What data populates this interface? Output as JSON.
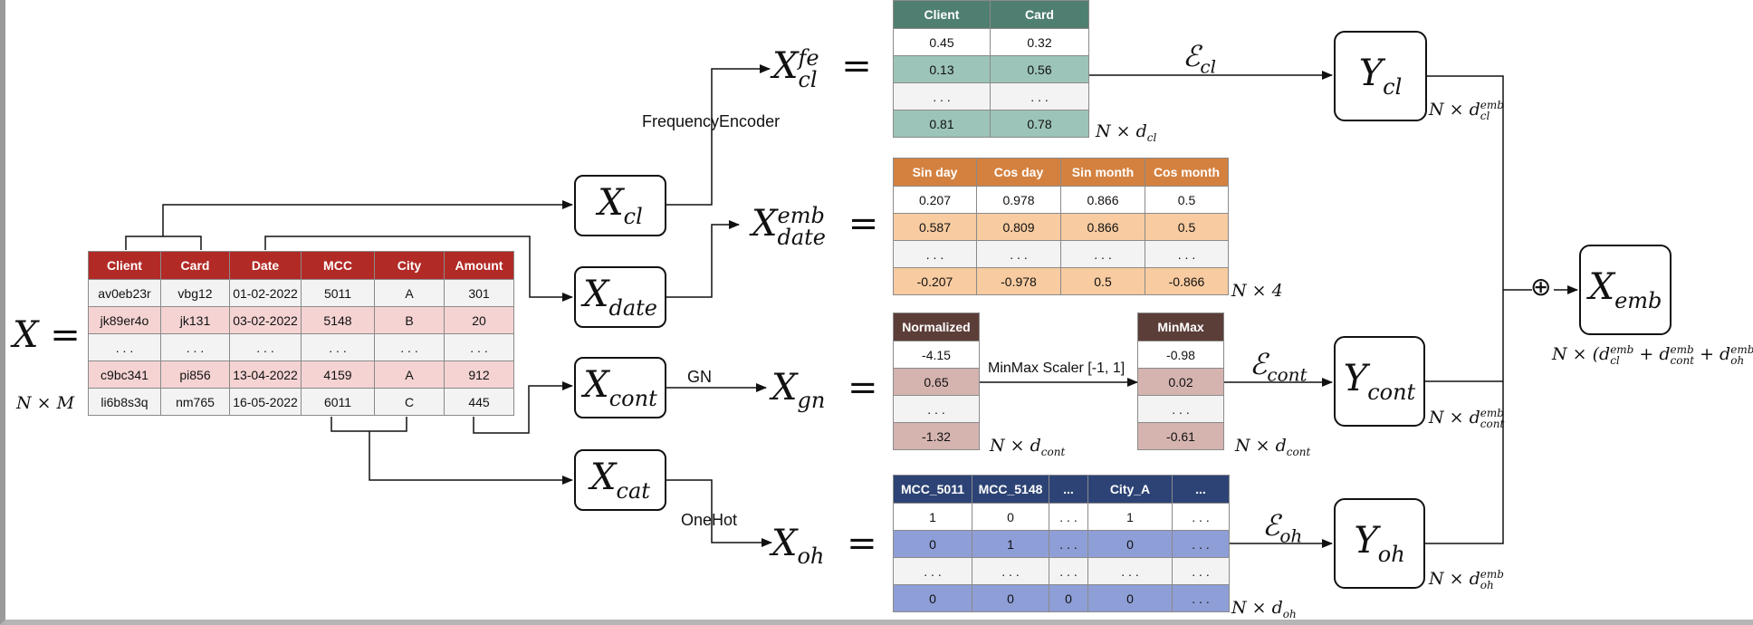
{
  "input_table": {
    "lhs": "X =",
    "dims": "N × M",
    "headers": [
      "Client",
      "Card",
      "Date",
      "MCC",
      "City",
      "Amount"
    ],
    "rows": [
      [
        "av0eb23r",
        "vbg12",
        "01-02-2022",
        "5011",
        "A",
        "301"
      ],
      [
        "jk89er4o",
        "jk131",
        "03-02-2022",
        "5148",
        "B",
        "20"
      ],
      [
        "...",
        "...",
        "...",
        "...",
        "...",
        "..."
      ],
      [
        "c9bc341",
        "pi856",
        "13-04-2022",
        "4159",
        "A",
        "912"
      ],
      [
        "li6b8s3q",
        "nm765",
        "16-05-2022",
        "6011",
        "C",
        "445"
      ]
    ]
  },
  "nodes": {
    "x_cl": {
      "base": "X",
      "sub": "cl"
    },
    "x_date": {
      "base": "X",
      "sub": "date"
    },
    "x_cont": {
      "base": "X",
      "sub": "cont"
    },
    "x_cat": {
      "base": "X",
      "sub": "cat"
    },
    "y_cl": {
      "base": "Y",
      "sub": "cl"
    },
    "y_cont": {
      "base": "Y",
      "sub": "cont"
    },
    "y_oh": {
      "base": "Y",
      "sub": "oh"
    },
    "x_emb": {
      "base": "X",
      "sub": "emb"
    }
  },
  "edge_labels": {
    "frequency_encoder": "FrequencyEncoder",
    "gn": "GN",
    "onehot": "OneHot",
    "minmax": "MinMax Scaler [-1, 1]",
    "eps_cl": {
      "base": "ℰ",
      "sub": "cl"
    },
    "eps_cont": {
      "base": "ℰ",
      "sub": "cont"
    },
    "eps_oh": {
      "base": "ℰ",
      "sub": "oh"
    },
    "oplus": "⊕"
  },
  "equations": {
    "fe": {
      "base": "X",
      "sup": "fe",
      "sub": "cl",
      "eq": "="
    },
    "date": {
      "base": "X",
      "sup": "emb",
      "sub": "date",
      "eq": "="
    },
    "gn": {
      "base": "X",
      "sub": "gn",
      "eq": "="
    },
    "oh": {
      "base": "X",
      "sub": "oh",
      "eq": "="
    }
  },
  "fe_table": {
    "headers": [
      "Client",
      "Card"
    ],
    "rows": [
      [
        "0.45",
        "0.32"
      ],
      [
        "0.13",
        "0.56"
      ],
      [
        "...",
        "..."
      ],
      [
        "0.81",
        "0.78"
      ]
    ],
    "dims": {
      "pre": "N × d",
      "sub": "cl"
    }
  },
  "date_table": {
    "headers": [
      "Sin day",
      "Cos day",
      "Sin month",
      "Cos month"
    ],
    "rows": [
      [
        "0.207",
        "0.978",
        "0.866",
        "0.5"
      ],
      [
        "0.587",
        "0.809",
        "0.866",
        "0.5"
      ],
      [
        "...",
        "...",
        "...",
        "..."
      ],
      [
        "-0.207",
        "-0.978",
        "0.5",
        "-0.866"
      ]
    ],
    "dims": {
      "pre": "N × 4",
      "sub": ""
    }
  },
  "norm_table": {
    "headers": [
      "Normalized"
    ],
    "rows": [
      [
        "-4.15"
      ],
      [
        "0.65"
      ],
      [
        "..."
      ],
      [
        "-1.32"
      ]
    ],
    "dims": {
      "pre": "N × d",
      "sub": "cont"
    }
  },
  "minmax_table": {
    "headers": [
      "MinMax"
    ],
    "rows": [
      [
        "-0.98"
      ],
      [
        "0.02"
      ],
      [
        "..."
      ],
      [
        "-0.61"
      ]
    ],
    "dims": {
      "pre": "N × d",
      "sub": "cont"
    }
  },
  "oh_table": {
    "headers": [
      "MCC_5011",
      "MCC_5148",
      "...",
      "City_A",
      "..."
    ],
    "rows": [
      [
        "1",
        "0",
        "...",
        "1",
        "..."
      ],
      [
        "0",
        "1",
        "...",
        "0",
        "..."
      ],
      [
        "...",
        "...",
        "...",
        "...",
        "..."
      ],
      [
        "0",
        "0",
        "0",
        "0",
        "..."
      ]
    ],
    "dims": {
      "pre": "N × d",
      "sub": "oh"
    }
  },
  "output_dims": {
    "y_cl": {
      "pre": "N × d",
      "sup": "emb",
      "sub": "cl"
    },
    "y_cont": {
      "pre": "N × d",
      "sup": "emb",
      "sub": "cont"
    },
    "y_oh": {
      "pre": "N × d",
      "sup": "emb",
      "sub": "oh"
    },
    "x_emb": {
      "pre": "N × (d",
      "sup1": "emb",
      "sub1": "cl",
      "mid1": " + d",
      "sup2": "emb",
      "sub2": "cont",
      "mid2": " + d",
      "sup3": "emb",
      "sub3": "oh",
      "post": ")"
    }
  },
  "colors": {
    "input_header": "#b22a26",
    "input_band": "#f5d3d3",
    "neutral_row": "#f3f3f3",
    "fe_header": "#4f7f71",
    "fe_band": "#9cc4b8",
    "date_header": "#d4813f",
    "date_band": "#f8cba0",
    "cont_header": "#5c3e38",
    "cont_band": "#d5b4b0",
    "oh_header": "#2d4375",
    "oh_band": "#8e9ed6"
  }
}
